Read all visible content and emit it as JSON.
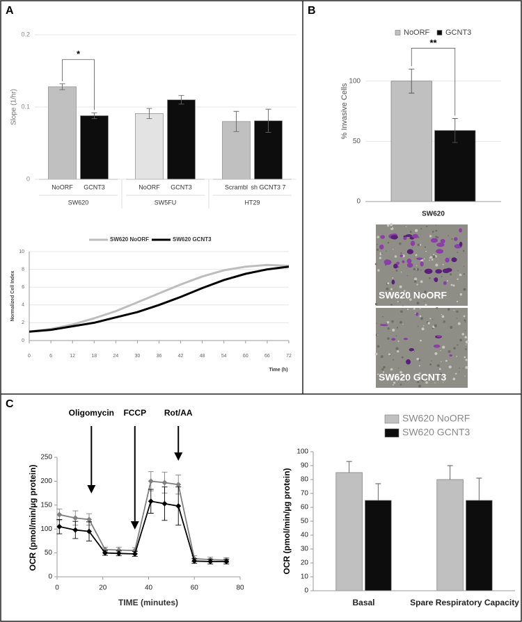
{
  "panels": [
    "A",
    "B",
    "C"
  ],
  "images": [
    "SW620 NoORF",
    "SW620 GCNT3"
  ],
  "chart_data": [
    {
      "type": "bar",
      "y_label": "Slope (1/hr)",
      "categories": [
        "NoORF",
        "GCNT3",
        "NoORF",
        "GCNT3",
        "Scrambl",
        "sh GCNT3 7"
      ],
      "groups": [
        "SW620",
        "SW5FU",
        "HT29"
      ],
      "values": [
        0.128,
        0.088,
        0.091,
        0.11,
        0.08,
        0.081
      ],
      "errors": [
        0.004,
        0.004,
        0.007,
        0.006,
        0.014,
        0.016
      ],
      "colors": [
        "#c0c0c0",
        "#0d0d0d",
        "#e3e3e3",
        "#0d0d0d",
        "#c0c0c0",
        "#0d0d0d"
      ],
      "ylim": [
        0,
        0.2
      ],
      "yticks": [
        0,
        0.1,
        0.2
      ],
      "grid": true,
      "significance": "*"
    },
    {
      "type": "line",
      "x_label": "Time (h)",
      "y_label": "Normalized Cell Index",
      "x": [
        0,
        6,
        12,
        18,
        24,
        30,
        36,
        42,
        48,
        54,
        60,
        66,
        72
      ],
      "series": [
        {
          "name": "SW620 NoORF",
          "color": "#bdbdbd",
          "values": [
            1,
            1.3,
            1.8,
            2.5,
            3.3,
            4.3,
            5.3,
            6.3,
            7.2,
            7.9,
            8.3,
            8.5,
            8.4
          ]
        },
        {
          "name": "SW620 GCNT3",
          "color": "#000000",
          "values": [
            1,
            1.2,
            1.6,
            2,
            2.6,
            3.2,
            4,
            4.9,
            5.9,
            6.8,
            7.5,
            8,
            8.3
          ]
        }
      ],
      "xlim": [
        0,
        72
      ],
      "xticks": [
        0,
        6,
        12,
        18,
        24,
        30,
        36,
        42,
        48,
        54,
        60,
        66,
        72
      ],
      "ylim": [
        0,
        10
      ],
      "yticks": [
        0,
        2,
        4,
        6,
        8,
        10
      ],
      "grid": true,
      "legend": "top"
    },
    {
      "type": "bar",
      "y_label": "% Invasive Cells",
      "categories": [
        "SW620"
      ],
      "series": [
        {
          "name": "NoORF",
          "color": "#c0c0c0",
          "values": [
            100
          ],
          "errors": [
            10
          ]
        },
        {
          "name": "GCNT3",
          "color": "#0d0d0d",
          "values": [
            59
          ],
          "errors": [
            10
          ]
        }
      ],
      "ylim": [
        0,
        120
      ],
      "yticks": [
        0,
        50,
        100
      ],
      "grid": true,
      "significance": "**",
      "legend": "top"
    },
    {
      "type": "line",
      "x_label": "TIME (minutes)",
      "y_label": "OCR (pmol/min/µg protein)",
      "annotations": [
        {
          "text": "Oligomycin",
          "x": 15
        },
        {
          "text": "FCCP",
          "x": 34
        },
        {
          "text": "Rot/AA",
          "x": 53
        }
      ],
      "x": [
        1,
        8,
        14,
        21,
        27,
        34,
        41,
        47,
        53,
        60,
        67,
        74
      ],
      "series": [
        {
          "color": "#7f7f7f",
          "values": [
            130,
            123,
            120,
            57,
            56,
            55,
            200,
            197,
            193,
            38,
            36,
            35
          ],
          "errors": [
            12,
            15,
            12,
            5,
            6,
            6,
            20,
            22,
            20,
            6,
            5,
            5
          ]
        },
        {
          "color": "#000000",
          "values": [
            105,
            98,
            95,
            50,
            49,
            48,
            158,
            153,
            148,
            33,
            32,
            32
          ],
          "errors": [
            15,
            18,
            20,
            5,
            5,
            5,
            25,
            35,
            40,
            5,
            5,
            5
          ]
        }
      ],
      "xlim": [
        0,
        80
      ],
      "xticks": [
        0,
        20,
        40,
        60,
        80
      ],
      "ylim": [
        0,
        250
      ],
      "yticks": [
        0,
        50,
        100,
        150,
        200,
        250
      ],
      "grid": false,
      "markers": true
    },
    {
      "type": "bar",
      "y_label": "OCR (pmol/min/µg protein)",
      "categories": [
        "Basal",
        "Spare Respiratory Capacity"
      ],
      "series": [
        {
          "name": "SW620 NoORF",
          "color": "#c0c0c0",
          "values": [
            85,
            80
          ],
          "errors": [
            8,
            10
          ]
        },
        {
          "name": "SW620 GCNT3",
          "color": "#0d0d0d",
          "values": [
            65,
            65
          ],
          "errors": [
            12,
            16
          ]
        }
      ],
      "ylim": [
        0,
        100
      ],
      "yticks": [
        0,
        10,
        20,
        30,
        40,
        50,
        60,
        70,
        80,
        90,
        100
      ],
      "grid": false,
      "legend": "top-right"
    }
  ]
}
